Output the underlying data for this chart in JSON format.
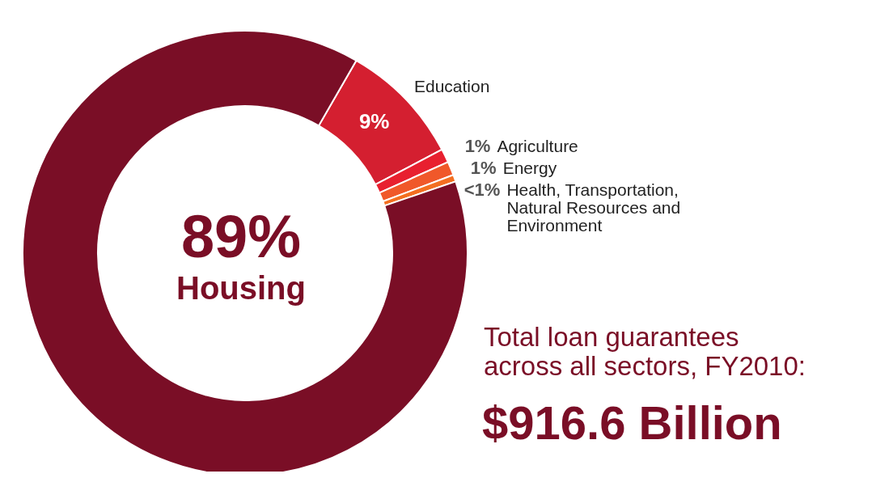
{
  "chart_data": {
    "type": "donut",
    "categories": [
      "Education",
      "Agriculture",
      "Energy",
      "Health, Transportation, Natural Resources and Environment",
      "Housing"
    ],
    "values": [
      9,
      1,
      1,
      0.5,
      89
    ],
    "value_labels": [
      "9%",
      "1%",
      "1%",
      "<1%",
      "89%"
    ],
    "colors": [
      "#d41f30",
      "#e8202f",
      "#f0582a",
      "#f36f21",
      "#7a0e26"
    ],
    "annotations": [
      "Total loan guarantees across all sectors, FY2010:",
      "$916.6 Billion"
    ]
  }
}
